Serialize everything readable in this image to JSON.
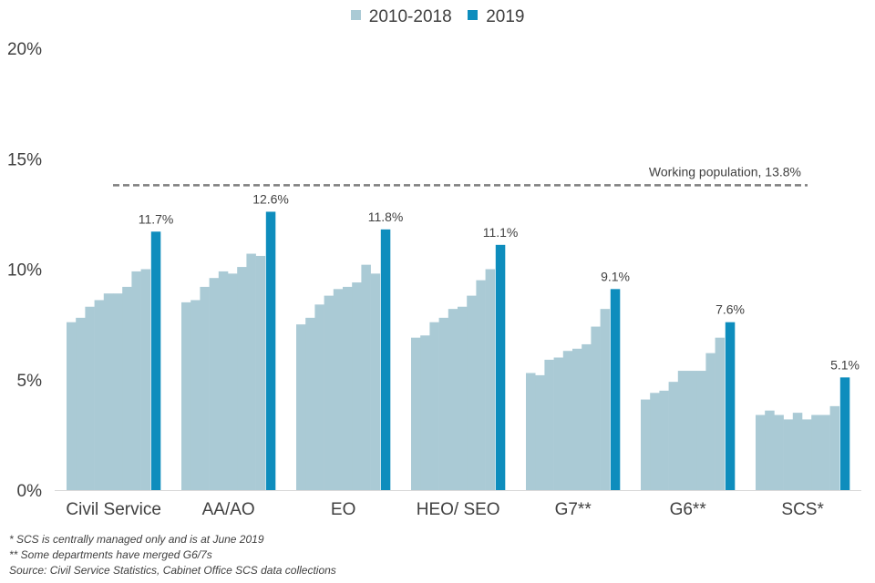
{
  "legend": {
    "items": [
      {
        "label": "2010-2018",
        "color": "#aacad5"
      },
      {
        "label": "2019",
        "color": "#0e8dbd"
      }
    ]
  },
  "notes": [
    "* SCS is centrally managed only and is at June 2019",
    "** Some departments have merged G6/7s",
    "Source: Civil Service Statistics, Cabinet Office SCS data collections"
  ],
  "chart_data": {
    "type": "bar",
    "title": "",
    "xlabel": "",
    "ylabel": "",
    "ylim": [
      0,
      20
    ],
    "yticks": [
      0,
      5,
      10,
      15,
      20
    ],
    "ytick_labels": [
      "0%",
      "5%",
      "10%",
      "15%",
      "20%"
    ],
    "grid": false,
    "legend_position": "top-center",
    "reference_line": {
      "value": 13.8,
      "label": "Working population, 13.8%",
      "style": "dashed",
      "color": "#7f7f7f"
    },
    "categories": [
      "Civil Service",
      "AA/AO",
      "EO",
      "HEO/ SEO",
      "G7**",
      "G6**",
      "SCS*"
    ],
    "series": [
      {
        "name": "2010-2018",
        "color": "#aacad5",
        "years": [
          "2010",
          "2011",
          "2012",
          "2013",
          "2014",
          "2015",
          "2016",
          "2017",
          "2018"
        ],
        "values": [
          [
            7.6,
            7.8,
            8.3,
            8.6,
            8.9,
            8.9,
            9.2,
            9.9,
            10.0
          ],
          [
            8.5,
            8.6,
            9.2,
            9.6,
            9.9,
            9.8,
            10.1,
            10.7,
            10.6
          ],
          [
            7.5,
            7.8,
            8.4,
            8.8,
            9.1,
            9.2,
            9.4,
            10.2,
            9.8
          ],
          [
            6.9,
            7.0,
            7.6,
            7.8,
            8.2,
            8.3,
            8.8,
            9.5,
            10.0
          ],
          [
            5.3,
            5.2,
            5.9,
            6.0,
            6.3,
            6.4,
            6.6,
            7.4,
            8.2
          ],
          [
            4.1,
            4.4,
            4.5,
            4.9,
            5.4,
            5.4,
            5.4,
            6.2,
            6.9
          ],
          [
            3.4,
            3.6,
            3.4,
            3.2,
            3.5,
            3.2,
            3.4,
            3.4,
            3.8
          ]
        ]
      },
      {
        "name": "2019",
        "color": "#0e8dbd",
        "values": [
          11.7,
          12.6,
          11.8,
          11.1,
          9.1,
          7.6,
          5.1
        ],
        "labels": [
          "11.7%",
          "12.6%",
          "11.8%",
          "11.1%",
          "9.1%",
          "7.6%",
          "5.1%"
        ]
      }
    ]
  }
}
